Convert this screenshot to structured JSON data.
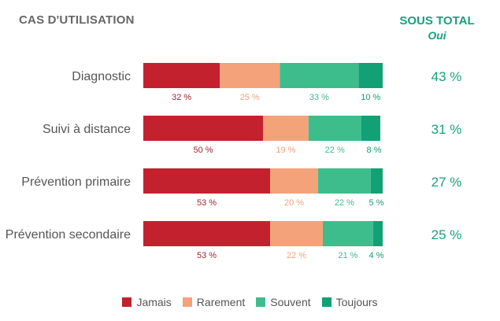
{
  "header": {
    "left_title": "CAS D'UTILISATION",
    "right_title": "SOUS TOTAL",
    "right_subtitle": "Oui"
  },
  "colors": {
    "Jamais": "#c4212e",
    "Rarement": "#f4a27a",
    "Souvent": "#3dbd8c",
    "Toujours": "#12a075",
    "total": "#17a27b",
    "label": "#555555"
  },
  "chart_data": {
    "type": "bar",
    "orientation": "horizontal",
    "stacked": true,
    "categories": [
      "Diagnostic",
      "Suivi à distance",
      "Prévention primaire",
      "Prévention secondaire"
    ],
    "series": [
      {
        "name": "Jamais",
        "values": [
          32,
          50,
          53,
          53
        ],
        "labels": [
          "32 %",
          "50 %",
          "53 %",
          "53 %"
        ]
      },
      {
        "name": "Rarement",
        "values": [
          25,
          19,
          20,
          22
        ],
        "labels": [
          "25 %",
          "19 %",
          "20 %",
          "22 %"
        ]
      },
      {
        "name": "Souvent",
        "values": [
          33,
          22,
          22,
          21
        ],
        "labels": [
          "33 %",
          "22 %",
          "22 %",
          "21 %"
        ]
      },
      {
        "name": "Toujours",
        "values": [
          10,
          8,
          5,
          4
        ],
        "labels": [
          "10 %",
          "8 %",
          "5 %",
          "4 %"
        ]
      }
    ],
    "subtotals": [
      "43 %",
      "31 %",
      "27 %",
      "25 %"
    ],
    "xlim": [
      0,
      100
    ],
    "grid": false,
    "legend": "bottom"
  }
}
